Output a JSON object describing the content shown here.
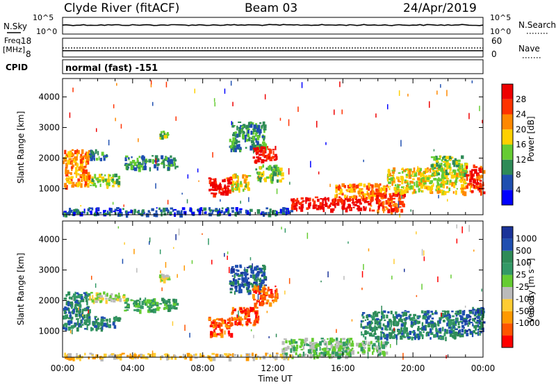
{
  "header": {
    "station": "Clyde River (fitACF)",
    "beam": "Beam 03",
    "date": "24/Apr/2019"
  },
  "small_panels": {
    "nsky_label": "N.Sky",
    "nsky_ticks": [
      "10^5",
      "10^0"
    ],
    "nsearch_label": "N.Search",
    "nsearch_ticks": [
      "10^5",
      "10^0"
    ],
    "freq_label_1": "Freq.",
    "freq_label_2": "[MHz]",
    "freq_ticks": [
      "18",
      "8"
    ],
    "nave_label": "Nave",
    "nave_ticks": [
      "60",
      "0"
    ],
    "cpid_label": "CPID",
    "cpid_text": "normal (fast) -151"
  },
  "chart_data": [
    {
      "type": "heatmap",
      "panel": "power",
      "ylabel": "Slant Range [km]",
      "yticks": [
        "4000",
        "3000",
        "2000",
        "1000"
      ],
      "xticks": [
        "00:00",
        "04:00",
        "08:00",
        "12:00",
        "16:00",
        "20:00",
        "00:00"
      ],
      "colorbar_label": "Power [dB]",
      "colorbar_ticks": [
        "28",
        "24",
        "20",
        "16",
        "12",
        "8",
        "4"
      ],
      "colorbar_colors": [
        "#0000ff",
        "#1f4fb0",
        "#2e8b57",
        "#66cc33",
        "#ffd000",
        "#ff8800",
        "#ff3300",
        "#ee0000"
      ],
      "regions": [
        {
          "t0": 0.0,
          "t1": 1.5,
          "r0": 1100,
          "r1": 2300,
          "level": 5
        },
        {
          "t0": 1.5,
          "t1": 3.2,
          "r0": 1100,
          "r1": 1500,
          "level": 3
        },
        {
          "t0": 1.5,
          "t1": 2.5,
          "r0": 2000,
          "r1": 2300,
          "level": 2
        },
        {
          "t0": 3.5,
          "t1": 6.5,
          "r0": 1700,
          "r1": 2100,
          "level": 2
        },
        {
          "t0": 5.5,
          "t1": 6.0,
          "r0": 2700,
          "r1": 2900,
          "level": 3
        },
        {
          "t0": 8.3,
          "t1": 9.6,
          "r0": 800,
          "r1": 1400,
          "level": 7
        },
        {
          "t0": 9.6,
          "t1": 10.6,
          "r0": 1000,
          "r1": 1500,
          "level": 4
        },
        {
          "t0": 9.5,
          "t1": 11.5,
          "r0": 2300,
          "r1": 3200,
          "level": 2
        },
        {
          "t0": 10.8,
          "t1": 12.2,
          "r0": 1900,
          "r1": 2400,
          "level": 7
        },
        {
          "t0": 11.0,
          "t1": 12.5,
          "r0": 1300,
          "r1": 1800,
          "level": 3
        },
        {
          "t0": 13.0,
          "t1": 17.5,
          "r0": 350,
          "r1": 750,
          "level": 7
        },
        {
          "t0": 15.5,
          "t1": 18.5,
          "r0": 750,
          "r1": 1200,
          "level": 5
        },
        {
          "t0": 17.5,
          "t1": 19.5,
          "r0": 300,
          "r1": 900,
          "level": 6
        },
        {
          "t0": 18.5,
          "t1": 23.0,
          "r0": 900,
          "r1": 1700,
          "level": 4
        },
        {
          "t0": 21.0,
          "t1": 23.0,
          "r0": 1500,
          "r1": 2100,
          "level": 3
        },
        {
          "t0": 23.0,
          "t1": 24.0,
          "r0": 900,
          "r1": 1800,
          "level": 6
        },
        {
          "t0": 0.0,
          "t1": 13.0,
          "r0": 200,
          "r1": 400,
          "level": 1
        }
      ]
    },
    {
      "type": "heatmap",
      "panel": "velocity",
      "ylabel": "Slant Range [km]",
      "yticks": [
        "4000",
        "3000",
        "2000",
        "1000"
      ],
      "xticks": [
        "00:00",
        "04:00",
        "08:00",
        "12:00",
        "16:00",
        "20:00",
        "00:00"
      ],
      "xlabel": "Time UT",
      "colorbar_label": "Velocity [m s⁻¹]",
      "colorbar_ticks": [
        "1000",
        "500",
        "100",
        "25",
        "-25",
        "-100",
        "-500",
        "-1000"
      ],
      "colorbar_colors": [
        "#ff0000",
        "#ff5500",
        "#ff9900",
        "#ffcc33",
        "#bbbbbb",
        "#66cc33",
        "#339966",
        "#2e8b57",
        "#1f4fb0",
        "#1a3399"
      ],
      "regions": [
        {
          "t0": 0.0,
          "t1": 1.5,
          "r0": 1100,
          "r1": 2300,
          "level": 7
        },
        {
          "t0": 1.5,
          "t1": 3.5,
          "r0": 2000,
          "r1": 2300,
          "level": 4
        },
        {
          "t0": 1.5,
          "t1": 3.2,
          "r0": 1100,
          "r1": 1500,
          "level": 7
        },
        {
          "t0": 3.5,
          "t1": 6.5,
          "r0": 1700,
          "r1": 2100,
          "level": 6
        },
        {
          "t0": 5.5,
          "t1": 6.0,
          "r0": 2700,
          "r1": 2900,
          "level": 4
        },
        {
          "t0": 8.3,
          "t1": 9.6,
          "r0": 900,
          "r1": 1500,
          "level": 1
        },
        {
          "t0": 9.6,
          "t1": 11.2,
          "r0": 1200,
          "r1": 1800,
          "level": 1
        },
        {
          "t0": 9.5,
          "t1": 11.5,
          "r0": 2300,
          "r1": 3200,
          "level": 8
        },
        {
          "t0": 10.8,
          "t1": 12.2,
          "r0": 1900,
          "r1": 2500,
          "level": 1
        },
        {
          "t0": 12.5,
          "t1": 16.5,
          "r0": 200,
          "r1": 800,
          "level": 5
        },
        {
          "t0": 15.5,
          "t1": 18.5,
          "r0": 300,
          "r1": 700,
          "level": 5
        },
        {
          "t0": 17.0,
          "t1": 22.5,
          "r0": 800,
          "r1": 1700,
          "level": 7
        },
        {
          "t0": 22.5,
          "t1": 24.0,
          "r0": 900,
          "r1": 1800,
          "level": 8
        },
        {
          "t0": 0.0,
          "t1": 13.0,
          "r0": 150,
          "r1": 300,
          "level": 3
        }
      ]
    }
  ]
}
